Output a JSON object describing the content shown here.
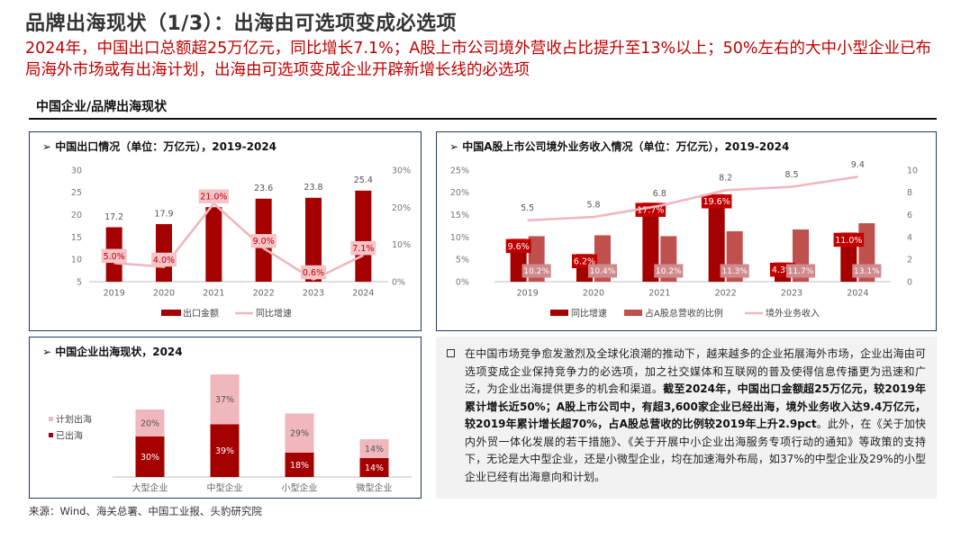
{
  "header": {
    "title": "品牌出海现状（1/3）：出海由可选项变成必选项",
    "subtitle": "2024年，中国出口总额超25万亿元，同比增长7.1%；A股上市公司境外营收占比提升至13%以上；50%左右的大中小型企业已布局海外市场或有出海计划，出海由可选项变成企业开辟新增长线的必选项"
  },
  "section": {
    "title": "中国企业/品牌出海现状"
  },
  "panels": {
    "export": {
      "title": "中国出口情况（单位：万亿元），2019-2024"
    },
    "overseas": {
      "title": "中国A股上市公司境外业务收入情况（单位：万亿元），2019-2024"
    },
    "enterprise": {
      "title": "中国企业出海现状，2024"
    }
  },
  "chart_data": [
    {
      "type": "bar",
      "categories": [
        "2019",
        "2020",
        "2021",
        "2022",
        "2023",
        "2024"
      ],
      "series": [
        {
          "name": "出口金额",
          "kind": "bar",
          "axis": "left",
          "color": "#a50000",
          "values": [
            17.2,
            17.9,
            21.7,
            23.6,
            23.8,
            25.4
          ]
        },
        {
          "name": "同比增速",
          "kind": "line",
          "axis": "right",
          "color": "#f0b7bc",
          "values": [
            5.0,
            4.0,
            21.0,
            9.0,
            0.6,
            7.1
          ],
          "labels": [
            "5.0%",
            "4.0%",
            "21.0%",
            "9.0%",
            "0.6%",
            "7.1%"
          ]
        }
      ],
      "ylim": [
        5,
        30
      ],
      "yticks": [
        "5",
        "10",
        "15",
        "20",
        "25",
        "30"
      ],
      "y2lim": [
        0,
        30
      ],
      "y2ticks": [
        "0%",
        "10%",
        "20%",
        "30%"
      ],
      "grid": false,
      "legend": "bottom"
    },
    {
      "type": "bar",
      "categories": [
        "2019",
        "2020",
        "2021",
        "2022",
        "2023",
        "2024"
      ],
      "series": [
        {
          "name": "同比增速",
          "kind": "bar",
          "axis": "left",
          "color": "#a50000",
          "values": [
            9.6,
            6.2,
            17.7,
            19.6,
            4.3,
            11.0
          ],
          "labels": [
            "9.6%",
            "6.2%",
            "17.7%",
            "19.6%",
            "4.3%",
            "11.0%"
          ]
        },
        {
          "name": "占A股总营收的比例",
          "kind": "bar",
          "axis": "left",
          "color": "#c0504d",
          "values": [
            10.2,
            10.4,
            10.2,
            11.3,
            11.7,
            13.1
          ],
          "labels": [
            "10.2%",
            "10.4%",
            "10.2%",
            "11.3%",
            "11.7%",
            "13.1%"
          ]
        },
        {
          "name": "境外业务收入",
          "kind": "line",
          "axis": "right",
          "color": "#f0b7bc",
          "values": [
            5.5,
            5.8,
            6.8,
            8.2,
            8.5,
            9.4
          ],
          "labels": [
            "5.5",
            "5.8",
            "6.8",
            "8.2",
            "8.5",
            "9.4"
          ]
        }
      ],
      "ylim": [
        0,
        25
      ],
      "yticks": [
        "0%",
        "5%",
        "10%",
        "15%",
        "20%",
        "25%"
      ],
      "y2lim": [
        0,
        10
      ],
      "y2ticks": [
        "0",
        "2",
        "4",
        "6",
        "8",
        "10"
      ],
      "grid": false,
      "legend": "bottom"
    },
    {
      "type": "bar",
      "stacked": true,
      "categories": [
        "大型企业",
        "中型企业",
        "小型企业",
        "微型企业"
      ],
      "series": [
        {
          "name": "已出海",
          "color": "#a50000",
          "values": [
            30,
            39,
            18,
            14
          ],
          "labels": [
            "30%",
            "39%",
            "18%",
            "14%"
          ]
        },
        {
          "name": "计划出海",
          "color": "#f0b7bc",
          "values": [
            20,
            37,
            29,
            14
          ],
          "labels": [
            "20%",
            "37%",
            "29%",
            "14%"
          ]
        }
      ],
      "legend": "left"
    }
  ],
  "body_text": {
    "p1": "在中国市场竞争愈发激烈及全球化浪潮的推动下，越来越多的企业拓展海外市场，企业出海由可选项变成企业保持竞争力的必选项，加之社交媒体和互联网的普及使得信息传播更为迅速和广泛，为企业出海提供更多的机会和渠道。",
    "p2_bold": "截至2024年，中国出口金额超25万亿元，较2019年累计增长近50%；A股上市公司中，有超3,600家企业已经出海，境外业务收入达9.4万亿元，较2019年累计增长超70%，占A股总营收的比例较2019年上升2.9pct",
    "p3": "。此外，在《关于加快内外贸一体化发展的若干措施》、《关于开展中小企业出海服务专项行动的通知》等政策的支持下，无论是大中型企业，还是小微型企业，均在加速海外布局，如37%的中型企业及29%的小型企业已经有出海意向和计划。"
  },
  "footer": {
    "source": "来源：Wind、海关总署、中国工业报、头豹研究院"
  }
}
